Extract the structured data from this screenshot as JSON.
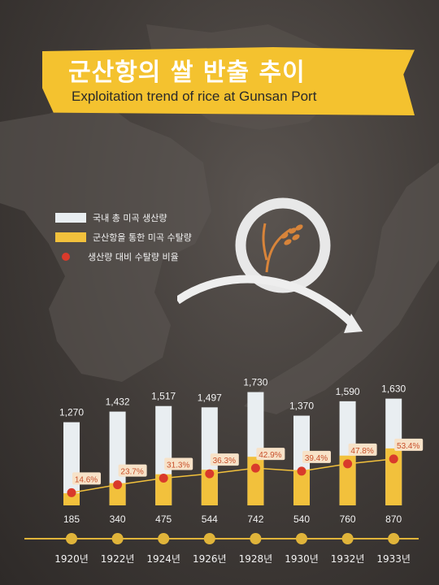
{
  "header": {
    "title_kr": "군산항의 쌀 반출 추이",
    "title_en": "Exploitation trend of rice at Gunsan Port"
  },
  "legend": [
    {
      "label": "국내 총 미곡 생산량",
      "color": "#e9eef1",
      "kind": "bar"
    },
    {
      "label": "군산항을 통한 미곡 수탈량",
      "color": "#f2c13c",
      "kind": "bar"
    },
    {
      "label": "생산량 대비 수탈량 비율",
      "color": "#d93a2b",
      "kind": "dot"
    }
  ],
  "chart_data": {
    "type": "bar",
    "categories": [
      "1920년",
      "1922년",
      "1924년",
      "1926년",
      "1928년",
      "1930년",
      "1932년",
      "1933년"
    ],
    "series": [
      {
        "name": "국내 총 미곡 생산량",
        "values": [
          1270,
          1432,
          1517,
          1497,
          1730,
          1370,
          1590,
          1630
        ],
        "labels": [
          "1,270",
          "1,432",
          "1,517",
          "1,497",
          "1,730",
          "1,370",
          "1,590",
          "1,630"
        ]
      },
      {
        "name": "군산항을 통한 미곡 수탈량",
        "values": [
          185,
          340,
          475,
          544,
          742,
          540,
          760,
          870
        ],
        "labels": [
          "185",
          "340",
          "475",
          "544",
          "742",
          "540",
          "760",
          "870"
        ]
      },
      {
        "name": "생산량 대비 수탈량 비율",
        "values": [
          14.6,
          23.7,
          31.3,
          36.3,
          42.9,
          39.4,
          47.8,
          53.4
        ],
        "labels": [
          "14.6%",
          "23.7%",
          "31.3%",
          "36.3%",
          "42.9%",
          "39.4%",
          "47.8%",
          "53.4%"
        ]
      }
    ],
    "colors": {
      "production": "#e9eef1",
      "exported": "#f2c13c",
      "ratio": "#d93a2b",
      "timeline": "#e0b43a"
    }
  }
}
